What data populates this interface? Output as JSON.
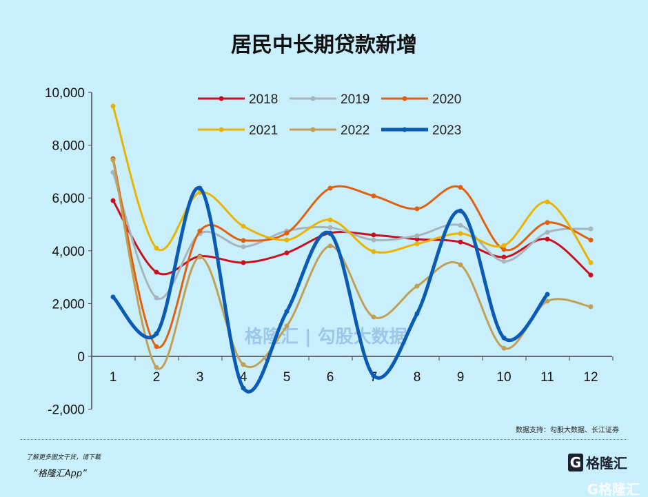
{
  "chart_data": {
    "type": "line",
    "title": "居民中长期贷款新增",
    "xlabel": "",
    "ylabel": "",
    "categories": [
      "1",
      "2",
      "3",
      "4",
      "5",
      "6",
      "7",
      "8",
      "9",
      "10",
      "11",
      "12"
    ],
    "ylim": [
      -2000,
      10000
    ],
    "yticks": [
      "-2,000",
      "0",
      "2,000",
      "4,000",
      "6,000",
      "8,000",
      "10,000"
    ],
    "ytick_values": [
      -2000,
      0,
      2000,
      4000,
      6000,
      8000,
      10000
    ],
    "grid": false,
    "legend_position": "top",
    "series": [
      {
        "name": "2018",
        "color": "#c8101e",
        "width": 3,
        "values": [
          5900,
          3190,
          3790,
          3550,
          3920,
          4670,
          4600,
          4440,
          4330,
          3760,
          4440,
          3080
        ]
      },
      {
        "name": "2019",
        "color": "#a7b4bb",
        "width": 3,
        "values": [
          6970,
          2220,
          4650,
          4150,
          4750,
          4880,
          4410,
          4570,
          4960,
          3600,
          4700,
          4830
        ]
      },
      {
        "name": "2020",
        "color": "#e0600f",
        "width": 3,
        "values": [
          7490,
          370,
          4750,
          4390,
          4670,
          6370,
          6080,
          5590,
          6400,
          4050,
          5070,
          4410
        ]
      },
      {
        "name": "2021",
        "color": "#e8b400",
        "width": 3,
        "values": [
          9480,
          4100,
          6210,
          4930,
          4410,
          5170,
          3970,
          4260,
          4650,
          4200,
          5850,
          3550
        ]
      },
      {
        "name": "2022",
        "color": "#bfa055",
        "width": 3,
        "values": [
          7440,
          -420,
          3760,
          -310,
          1150,
          4180,
          1490,
          2660,
          3470,
          310,
          2090,
          1880
        ]
      },
      {
        "name": "2023",
        "color": "#0a5bb5",
        "width": 5,
        "values": [
          2250,
          860,
          6370,
          -1200,
          1700,
          4650,
          -730,
          1620,
          5510,
          700,
          2350,
          null
        ]
      }
    ]
  },
  "source": "数据支持：勾股大数据、长江证券",
  "watermark": "格隆汇 | 勾股大数据",
  "promo_line1": "了解更多图文干货，请下载",
  "promo_line2": "“格隆汇App”",
  "logo_text": "格隆汇",
  "logo_mark": "G",
  "logo_bottom": "G格隆汇"
}
